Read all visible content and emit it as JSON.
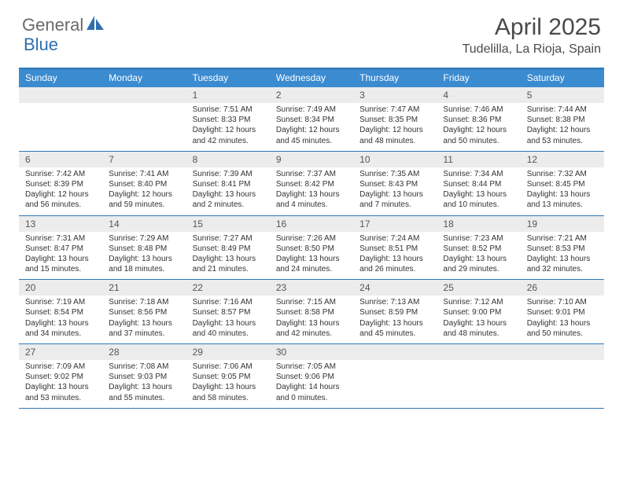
{
  "brand": {
    "name_a": "General",
    "name_b": "Blue"
  },
  "colors": {
    "header_bar": "#3b8bd0",
    "rule": "#2f77b6",
    "daynum_bg": "#ececec",
    "logo_gray": "#6a6a6a",
    "logo_blue": "#2f6fb0",
    "text": "#333333"
  },
  "title": "April 2025",
  "location": "Tudelilla, La Rioja, Spain",
  "days_of_week": [
    "Sunday",
    "Monday",
    "Tuesday",
    "Wednesday",
    "Thursday",
    "Friday",
    "Saturday"
  ],
  "weeks": [
    [
      {
        "n": "",
        "lines": []
      },
      {
        "n": "",
        "lines": []
      },
      {
        "n": "1",
        "lines": [
          "Sunrise: 7:51 AM",
          "Sunset: 8:33 PM",
          "Daylight: 12 hours and 42 minutes."
        ]
      },
      {
        "n": "2",
        "lines": [
          "Sunrise: 7:49 AM",
          "Sunset: 8:34 PM",
          "Daylight: 12 hours and 45 minutes."
        ]
      },
      {
        "n": "3",
        "lines": [
          "Sunrise: 7:47 AM",
          "Sunset: 8:35 PM",
          "Daylight: 12 hours and 48 minutes."
        ]
      },
      {
        "n": "4",
        "lines": [
          "Sunrise: 7:46 AM",
          "Sunset: 8:36 PM",
          "Daylight: 12 hours and 50 minutes."
        ]
      },
      {
        "n": "5",
        "lines": [
          "Sunrise: 7:44 AM",
          "Sunset: 8:38 PM",
          "Daylight: 12 hours and 53 minutes."
        ]
      }
    ],
    [
      {
        "n": "6",
        "lines": [
          "Sunrise: 7:42 AM",
          "Sunset: 8:39 PM",
          "Daylight: 12 hours and 56 minutes."
        ]
      },
      {
        "n": "7",
        "lines": [
          "Sunrise: 7:41 AM",
          "Sunset: 8:40 PM",
          "Daylight: 12 hours and 59 minutes."
        ]
      },
      {
        "n": "8",
        "lines": [
          "Sunrise: 7:39 AM",
          "Sunset: 8:41 PM",
          "Daylight: 13 hours and 2 minutes."
        ]
      },
      {
        "n": "9",
        "lines": [
          "Sunrise: 7:37 AM",
          "Sunset: 8:42 PM",
          "Daylight: 13 hours and 4 minutes."
        ]
      },
      {
        "n": "10",
        "lines": [
          "Sunrise: 7:35 AM",
          "Sunset: 8:43 PM",
          "Daylight: 13 hours and 7 minutes."
        ]
      },
      {
        "n": "11",
        "lines": [
          "Sunrise: 7:34 AM",
          "Sunset: 8:44 PM",
          "Daylight: 13 hours and 10 minutes."
        ]
      },
      {
        "n": "12",
        "lines": [
          "Sunrise: 7:32 AM",
          "Sunset: 8:45 PM",
          "Daylight: 13 hours and 13 minutes."
        ]
      }
    ],
    [
      {
        "n": "13",
        "lines": [
          "Sunrise: 7:31 AM",
          "Sunset: 8:47 PM",
          "Daylight: 13 hours and 15 minutes."
        ]
      },
      {
        "n": "14",
        "lines": [
          "Sunrise: 7:29 AM",
          "Sunset: 8:48 PM",
          "Daylight: 13 hours and 18 minutes."
        ]
      },
      {
        "n": "15",
        "lines": [
          "Sunrise: 7:27 AM",
          "Sunset: 8:49 PM",
          "Daylight: 13 hours and 21 minutes."
        ]
      },
      {
        "n": "16",
        "lines": [
          "Sunrise: 7:26 AM",
          "Sunset: 8:50 PM",
          "Daylight: 13 hours and 24 minutes."
        ]
      },
      {
        "n": "17",
        "lines": [
          "Sunrise: 7:24 AM",
          "Sunset: 8:51 PM",
          "Daylight: 13 hours and 26 minutes."
        ]
      },
      {
        "n": "18",
        "lines": [
          "Sunrise: 7:23 AM",
          "Sunset: 8:52 PM",
          "Daylight: 13 hours and 29 minutes."
        ]
      },
      {
        "n": "19",
        "lines": [
          "Sunrise: 7:21 AM",
          "Sunset: 8:53 PM",
          "Daylight: 13 hours and 32 minutes."
        ]
      }
    ],
    [
      {
        "n": "20",
        "lines": [
          "Sunrise: 7:19 AM",
          "Sunset: 8:54 PM",
          "Daylight: 13 hours and 34 minutes."
        ]
      },
      {
        "n": "21",
        "lines": [
          "Sunrise: 7:18 AM",
          "Sunset: 8:56 PM",
          "Daylight: 13 hours and 37 minutes."
        ]
      },
      {
        "n": "22",
        "lines": [
          "Sunrise: 7:16 AM",
          "Sunset: 8:57 PM",
          "Daylight: 13 hours and 40 minutes."
        ]
      },
      {
        "n": "23",
        "lines": [
          "Sunrise: 7:15 AM",
          "Sunset: 8:58 PM",
          "Daylight: 13 hours and 42 minutes."
        ]
      },
      {
        "n": "24",
        "lines": [
          "Sunrise: 7:13 AM",
          "Sunset: 8:59 PM",
          "Daylight: 13 hours and 45 minutes."
        ]
      },
      {
        "n": "25",
        "lines": [
          "Sunrise: 7:12 AM",
          "Sunset: 9:00 PM",
          "Daylight: 13 hours and 48 minutes."
        ]
      },
      {
        "n": "26",
        "lines": [
          "Sunrise: 7:10 AM",
          "Sunset: 9:01 PM",
          "Daylight: 13 hours and 50 minutes."
        ]
      }
    ],
    [
      {
        "n": "27",
        "lines": [
          "Sunrise: 7:09 AM",
          "Sunset: 9:02 PM",
          "Daylight: 13 hours and 53 minutes."
        ]
      },
      {
        "n": "28",
        "lines": [
          "Sunrise: 7:08 AM",
          "Sunset: 9:03 PM",
          "Daylight: 13 hours and 55 minutes."
        ]
      },
      {
        "n": "29",
        "lines": [
          "Sunrise: 7:06 AM",
          "Sunset: 9:05 PM",
          "Daylight: 13 hours and 58 minutes."
        ]
      },
      {
        "n": "30",
        "lines": [
          "Sunrise: 7:05 AM",
          "Sunset: 9:06 PM",
          "Daylight: 14 hours and 0 minutes."
        ]
      },
      {
        "n": "",
        "lines": []
      },
      {
        "n": "",
        "lines": []
      },
      {
        "n": "",
        "lines": []
      }
    ]
  ]
}
